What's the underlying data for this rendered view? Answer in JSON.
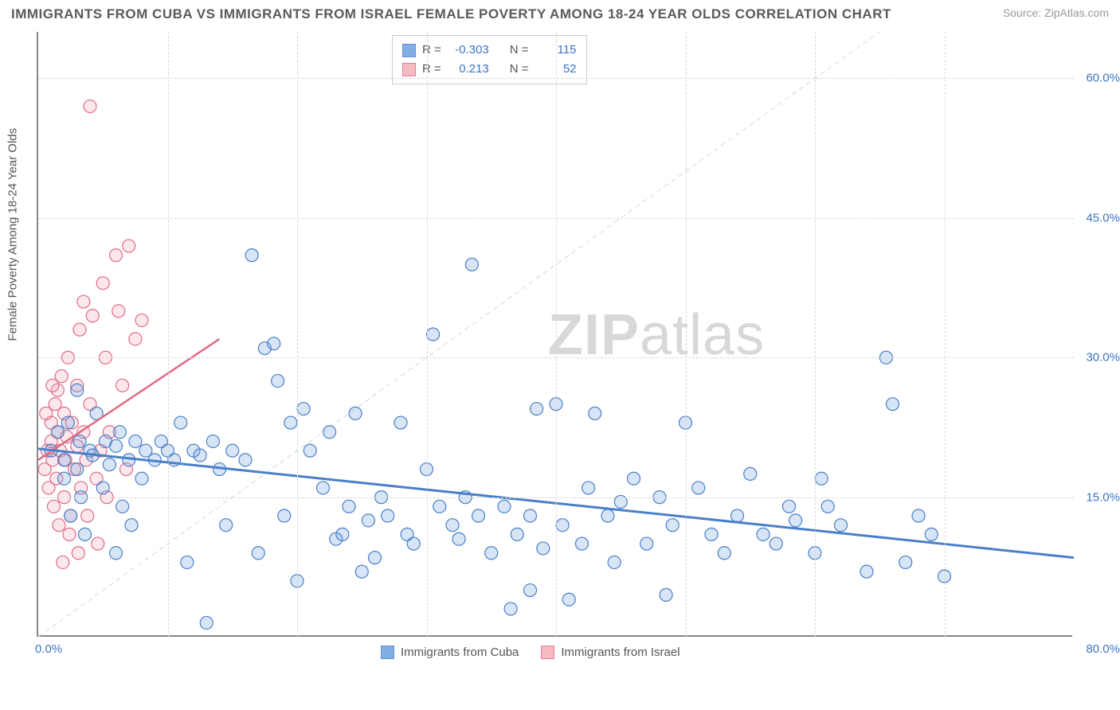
{
  "title": "IMMIGRANTS FROM CUBA VS IMMIGRANTS FROM ISRAEL FEMALE POVERTY AMONG 18-24 YEAR OLDS CORRELATION CHART",
  "source": "Source: ZipAtlas.com",
  "ylabel": "Female Poverty Among 18-24 Year Olds",
  "watermark_a": "ZIP",
  "watermark_b": "atlas",
  "chart": {
    "type": "scatter",
    "xlim": [
      0,
      80
    ],
    "ylim": [
      0,
      65
    ],
    "x_origin_label": "0.0%",
    "x_max_label": "80.0%",
    "y_ticks": [
      {
        "v": 15,
        "label": "15.0%"
      },
      {
        "v": 30,
        "label": "30.0%"
      },
      {
        "v": 45,
        "label": "45.0%"
      },
      {
        "v": 60,
        "label": "60.0%"
      }
    ],
    "x_grid": [
      10,
      20,
      30,
      40,
      50,
      60,
      70
    ],
    "background_color": "#ffffff",
    "grid_color": "#d8d8d8",
    "axis_color": "#888888",
    "tick_label_color": "#3b74c4",
    "marker_radius": 8,
    "marker_stroke_width": 1.2,
    "marker_fill_opacity": 0.28,
    "diagonal_line": {
      "color": "#dcdcdc",
      "dash": "6,5",
      "width": 1.2
    },
    "series": [
      {
        "key": "cuba",
        "label": "Immigrants from Cuba",
        "color": "#6ea0e0",
        "stroke": "#4a7fc9",
        "R": "-0.303",
        "N": "115",
        "trend": {
          "x1": 0,
          "y1": 20.2,
          "x2": 80,
          "y2": 8.5,
          "width": 3
        },
        "points": [
          [
            1,
            20
          ],
          [
            1.5,
            22
          ],
          [
            2,
            19
          ],
          [
            2,
            17
          ],
          [
            2.3,
            23
          ],
          [
            2.5,
            13
          ],
          [
            3,
            26.5
          ],
          [
            3,
            18
          ],
          [
            3.2,
            21
          ],
          [
            3.3,
            15
          ],
          [
            3.6,
            11
          ],
          [
            4,
            20
          ],
          [
            4.2,
            19.5
          ],
          [
            4.5,
            24
          ],
          [
            5,
            16
          ],
          [
            5.2,
            21
          ],
          [
            5.5,
            18.5
          ],
          [
            6,
            20.5
          ],
          [
            6,
            9
          ],
          [
            6.3,
            22
          ],
          [
            6.5,
            14
          ],
          [
            7,
            19
          ],
          [
            7.2,
            12
          ],
          [
            7.5,
            21
          ],
          [
            8,
            17
          ],
          [
            8.3,
            20
          ],
          [
            9,
            19
          ],
          [
            9.5,
            21
          ],
          [
            10,
            20
          ],
          [
            10.5,
            19
          ],
          [
            11,
            23
          ],
          [
            11.5,
            8
          ],
          [
            12,
            20
          ],
          [
            12.5,
            19.5
          ],
          [
            13,
            1.5
          ],
          [
            13.5,
            21
          ],
          [
            14,
            18
          ],
          [
            14.5,
            12
          ],
          [
            15,
            20
          ],
          [
            16,
            19
          ],
          [
            16.5,
            41
          ],
          [
            17,
            9
          ],
          [
            17.5,
            31
          ],
          [
            18.2,
            31.5
          ],
          [
            18.5,
            27.5
          ],
          [
            19,
            13
          ],
          [
            19.5,
            23
          ],
          [
            20,
            6
          ],
          [
            20.5,
            24.5
          ],
          [
            21,
            20
          ],
          [
            22,
            16
          ],
          [
            22.5,
            22
          ],
          [
            23,
            10.5
          ],
          [
            23.5,
            11
          ],
          [
            24,
            14
          ],
          [
            24.5,
            24
          ],
          [
            25,
            7
          ],
          [
            25.5,
            12.5
          ],
          [
            26,
            8.5
          ],
          [
            26.5,
            15
          ],
          [
            27,
            13
          ],
          [
            28,
            23
          ],
          [
            28.5,
            11
          ],
          [
            29,
            10
          ],
          [
            30,
            18
          ],
          [
            30.5,
            32.5
          ],
          [
            31,
            14
          ],
          [
            32,
            12
          ],
          [
            32.5,
            10.5
          ],
          [
            33,
            15
          ],
          [
            33.5,
            40
          ],
          [
            34,
            13
          ],
          [
            35,
            9
          ],
          [
            36,
            14
          ],
          [
            36.5,
            3
          ],
          [
            37,
            11
          ],
          [
            38,
            13
          ],
          [
            38.5,
            24.5
          ],
          [
            39,
            9.5
          ],
          [
            40,
            25
          ],
          [
            40.5,
            12
          ],
          [
            41,
            4
          ],
          [
            42,
            10
          ],
          [
            42.5,
            16
          ],
          [
            43,
            24
          ],
          [
            44,
            13
          ],
          [
            45,
            14.5
          ],
          [
            46,
            17
          ],
          [
            47,
            10
          ],
          [
            48,
            15
          ],
          [
            48.5,
            4.5
          ],
          [
            49,
            12
          ],
          [
            50,
            23
          ],
          [
            51,
            16
          ],
          [
            53,
            9
          ],
          [
            54,
            13
          ],
          [
            55,
            17.5
          ],
          [
            56,
            11
          ],
          [
            57,
            10
          ],
          [
            58,
            14
          ],
          [
            60,
            9
          ],
          [
            60.5,
            17
          ],
          [
            62,
            12
          ],
          [
            64,
            7
          ],
          [
            65.5,
            30
          ],
          [
            66,
            25
          ],
          [
            67,
            8
          ],
          [
            68,
            13
          ],
          [
            69,
            11
          ],
          [
            70,
            6.5
          ],
          [
            58.5,
            12.5
          ],
          [
            44.5,
            8
          ],
          [
            52,
            11
          ],
          [
            61,
            14
          ],
          [
            38,
            5
          ]
        ]
      },
      {
        "key": "israel",
        "label": "Immigrants from Israel",
        "color": "#f5aeb9",
        "stroke": "#e06b84",
        "R": "0.213",
        "N": "52",
        "trend": {
          "x1": 0,
          "y1": 19,
          "x2": 14,
          "y2": 32,
          "width": 2.5
        },
        "points": [
          [
            0.5,
            18
          ],
          [
            0.7,
            20
          ],
          [
            0.8,
            16
          ],
          [
            1,
            21
          ],
          [
            1,
            23
          ],
          [
            1.1,
            19
          ],
          [
            1.2,
            14
          ],
          [
            1.3,
            25
          ],
          [
            1.4,
            17
          ],
          [
            1.5,
            22
          ],
          [
            1.5,
            26.5
          ],
          [
            1.7,
            20
          ],
          [
            1.8,
            28
          ],
          [
            2,
            15
          ],
          [
            2,
            24
          ],
          [
            2.1,
            19
          ],
          [
            2.2,
            21.5
          ],
          [
            2.3,
            30
          ],
          [
            2.5,
            13
          ],
          [
            2.6,
            23
          ],
          [
            2.8,
            18
          ],
          [
            3,
            20.5
          ],
          [
            3,
            27
          ],
          [
            3.2,
            33
          ],
          [
            3.3,
            16
          ],
          [
            3.5,
            22
          ],
          [
            3.5,
            36
          ],
          [
            3.7,
            19
          ],
          [
            4,
            25
          ],
          [
            4.2,
            34.5
          ],
          [
            4.5,
            17
          ],
          [
            4.8,
            20
          ],
          [
            5,
            38
          ],
          [
            5.2,
            30
          ],
          [
            5.5,
            22
          ],
          [
            6,
            41
          ],
          [
            6.2,
            35
          ],
          [
            6.5,
            27
          ],
          [
            7,
            42
          ],
          [
            7.5,
            32
          ],
          [
            8,
            34
          ],
          [
            4,
            57
          ],
          [
            1.6,
            12
          ],
          [
            2.4,
            11
          ],
          [
            3.8,
            13
          ],
          [
            5.3,
            15
          ],
          [
            6.8,
            18
          ],
          [
            1.9,
            8
          ],
          [
            3.1,
            9
          ],
          [
            4.6,
            10
          ],
          [
            0.6,
            24
          ],
          [
            1.1,
            27
          ]
        ]
      }
    ]
  },
  "legend": {
    "cuba": "Immigrants from Cuba",
    "israel": "Immigrants from Israel"
  },
  "stats_labels": {
    "R": "R =",
    "N": "N ="
  }
}
